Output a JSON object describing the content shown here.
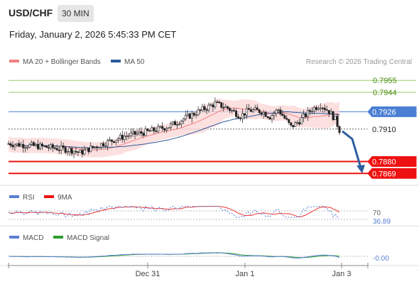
{
  "header": {
    "pair": "USD/CHF",
    "timeframe": "30 MIN",
    "datetime": "Friday, January 2, 2026 5:45:33 PM CET"
  },
  "chart_data": {
    "type": "candlestick",
    "main_panel": {
      "legend": [
        {
          "label": "MA 20 + Bollinger Bands",
          "color": "#f08080"
        },
        {
          "label": "MA 50",
          "color": "#2c5a9c"
        }
      ],
      "credit": "Research © 2026 Trading Central",
      "y_range": [
        0.786,
        0.7965
      ],
      "x_labels": [
        "Dec 31",
        "Jan 1",
        "Jan 3"
      ],
      "levels": [
        {
          "value": "0.7955",
          "type": "resistance",
          "color": "#9acd6a",
          "text_color": "#4a8a10"
        },
        {
          "value": "0.7944",
          "type": "resistance",
          "color": "#9acd6a",
          "text_color": "#4a8a10"
        },
        {
          "value": "0.7926",
          "type": "pivot",
          "color": "#4a7fd4",
          "text_color": "#ffffff"
        },
        {
          "value": "0.7910",
          "type": "last",
          "color": "#666666",
          "text_color": "#222222"
        },
        {
          "value": "0.7880",
          "type": "support",
          "color": "#ee1111",
          "text_color": "#ffffff"
        },
        {
          "value": "0.7869",
          "type": "support",
          "color": "#ee1111",
          "text_color": "#ffffff"
        }
      ],
      "arrow": {
        "direction": "down",
        "from": 0.791,
        "to": 0.7869,
        "color": "#2d5e9e"
      }
    },
    "rsi_panel": {
      "legend": [
        {
          "label": "RSI",
          "color": "#5b7fd4"
        },
        {
          "label": "9MA",
          "color": "#ee1111"
        }
      ],
      "levels": [
        "70"
      ],
      "current": "36.89"
    },
    "macd_panel": {
      "legend": [
        {
          "label": "MACD",
          "color": "#5b7fd4"
        },
        {
          "label": "MACD Signal",
          "color": "#2e9e2e"
        }
      ],
      "current": "-0.00"
    }
  }
}
